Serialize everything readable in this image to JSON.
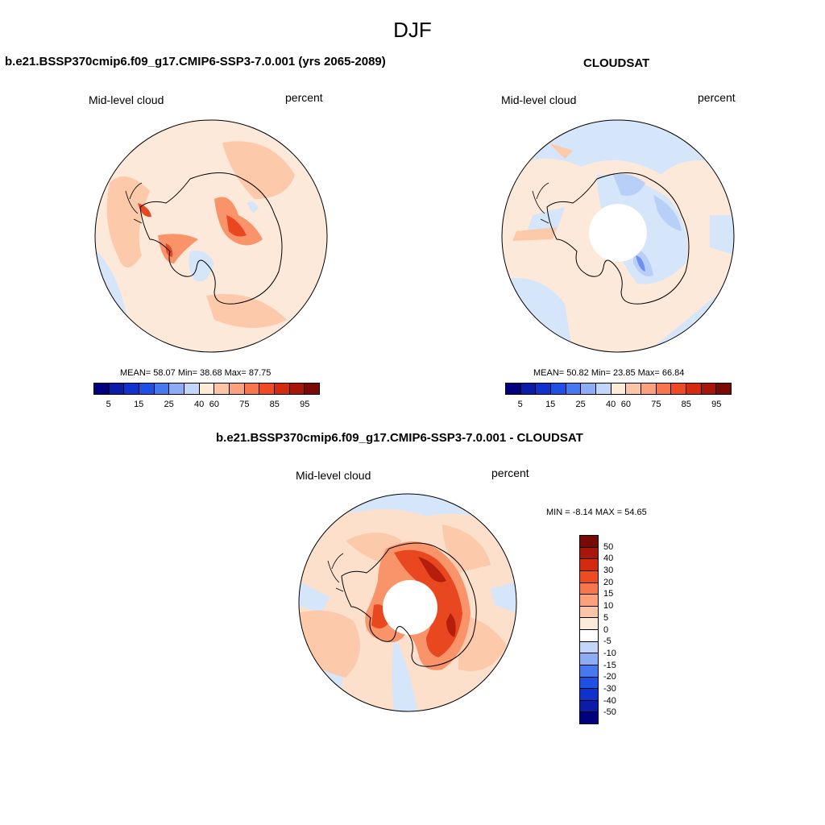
{
  "season": "DJF",
  "variable_label": "Mid-level cloud",
  "units_label": "percent",
  "panels": {
    "model": {
      "title": "b.e21.BSSP370cmip6.f09_g17.CMIP6-SSP3-7.0.001 (yrs 2065-2089)",
      "stats": "MEAN=  58.07  Min=  38.68  Max=  87.75"
    },
    "obs": {
      "title": "CLOUDSAT",
      "stats": "MEAN=  50.82  Min=  23.85  Max=  66.84"
    },
    "diff": {
      "title": "b.e21.BSSP370cmip6.f09_g17.CMIP6-SSP3-7.0.001 - CLOUDSAT",
      "stats": "MIN =  -8.14 MAX =  54.65"
    }
  },
  "colorbar_abs": {
    "colors": [
      "#00007f",
      "#0a1ca8",
      "#0f32cc",
      "#1e50e6",
      "#4678f0",
      "#8cacf5",
      "#c2d6fa",
      "#fdebd8",
      "#fcc5a5",
      "#fba27c",
      "#f8764b",
      "#f04a22",
      "#d42a0f",
      "#a8160a",
      "#7a0a05"
    ],
    "ticks": [
      "5",
      "15",
      "25",
      "40",
      "60",
      "75",
      "85",
      "95"
    ]
  },
  "colorbar_diff": {
    "colors": [
      "#7a0a05",
      "#a8160a",
      "#d42a0f",
      "#f04a22",
      "#f8764b",
      "#fba27c",
      "#fcc5a5",
      "#fdebd8",
      "#ffffff",
      "#c2d6fa",
      "#8cacf5",
      "#4678f0",
      "#1e50e6",
      "#0f32cc",
      "#0a1ca8",
      "#00007f"
    ],
    "ticks": [
      "50",
      "40",
      "30",
      "20",
      "15",
      "10",
      "5",
      "0",
      "-5",
      "-10",
      "-15",
      "-20",
      "-30",
      "-40",
      "-50"
    ]
  },
  "map_colors": {
    "ocean_base_model": "#fde9d9",
    "ocean_base_obs": "#fde9d9",
    "ocean_base_diff": "#fde0cc",
    "light_blue": "#d6e6fa",
    "mid_blue": "#b8cff7",
    "dark_blue": "#6d8ff0",
    "light_red": "#fcc9ab",
    "mid_red": "#f8936a",
    "dark_red": "#e8471f",
    "deep_red": "#b51d0c",
    "coast": "#000000"
  }
}
